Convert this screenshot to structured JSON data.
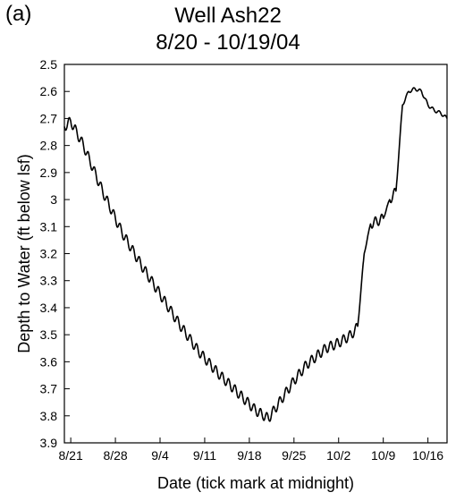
{
  "panel_label": "(a)",
  "chart_data": {
    "type": "line",
    "title": "Well Ash22",
    "subtitle": "8/20 - 10/19/04",
    "xlabel": "Date (tick mark at midnight)",
    "ylabel": "Depth to Water (ft below lsf)",
    "ylim": [
      2.5,
      3.9
    ],
    "y_inverted": true,
    "yticks": [
      2.5,
      2.6,
      2.7,
      2.8,
      2.9,
      3.0,
      3.1,
      3.2,
      3.3,
      3.4,
      3.5,
      3.6,
      3.7,
      3.8,
      3.9
    ],
    "ytick_labels": [
      "2.5",
      "2.6",
      "2.7",
      "2.8",
      "2.9",
      "3",
      "3.1",
      "3.2",
      "3.3",
      "3.4",
      "3.5",
      "3.6",
      "3.7",
      "3.8",
      "3.9"
    ],
    "xlim": [
      "2004-08-20",
      "2004-10-19"
    ],
    "xticks": [
      "2004-08-21",
      "2004-08-28",
      "2004-09-04",
      "2004-09-11",
      "2004-09-18",
      "2004-09-25",
      "2004-10-02",
      "2004-10-09",
      "2004-10-16"
    ],
    "xtick_labels": [
      "8/21",
      "8/28",
      "9/4",
      "9/11",
      "9/18",
      "9/25",
      "10/2",
      "10/9",
      "10/16"
    ],
    "grid": false,
    "line_color": "#000000",
    "series": [
      {
        "x": [
          "2004-08-20",
          "2004-08-21",
          "2004-08-23",
          "2004-08-26",
          "2004-08-29",
          "2004-09-01",
          "2004-09-04",
          "2004-09-07",
          "2004-09-10",
          "2004-09-13",
          "2004-09-16",
          "2004-09-19",
          "2004-09-21",
          "2004-09-23",
          "2004-09-25",
          "2004-09-27",
          "2004-09-30",
          "2004-10-02",
          "2004-10-04",
          "2004-10-05",
          "2004-10-06",
          "2004-10-07",
          "2004-10-08",
          "2004-10-09",
          "2004-10-10",
          "2004-10-11",
          "2004-10-12",
          "2004-10-13",
          "2004-10-14",
          "2004-10-15",
          "2004-10-16",
          "2004-10-17",
          "2004-10-18",
          "2004-10-19"
        ],
        "y": [
          2.73,
          2.71,
          2.8,
          2.97,
          3.12,
          3.24,
          3.35,
          3.46,
          3.56,
          3.64,
          3.71,
          3.78,
          3.81,
          3.74,
          3.67,
          3.61,
          3.55,
          3.53,
          3.5,
          3.47,
          3.2,
          3.09,
          3.08,
          3.07,
          3.0,
          2.97,
          2.65,
          2.6,
          2.59,
          2.6,
          2.65,
          2.67,
          2.68,
          2.7
        ]
      }
    ]
  }
}
